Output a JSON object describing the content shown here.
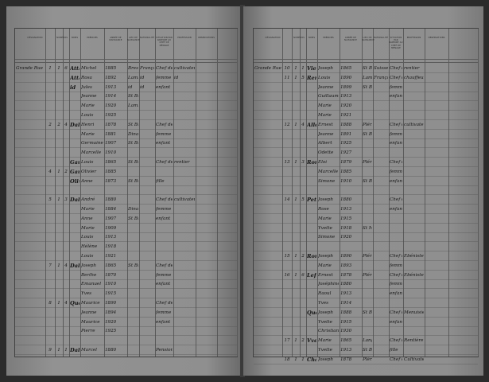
{
  "headers": {
    "designation": "DÉSIGNATION",
    "numeros": "NUMÉROS",
    "noms": "NOMS",
    "prenoms": "PRÉNOMS",
    "annee": "ANNÉE DE NAISSANCE",
    "lieu": "LIEU DE NAISSANCE",
    "nationalite": "NATIONALITÉ",
    "situation": "SITUATION PAR RAPPORT AU CHEF DE MÉNAGE",
    "profession": "PROFESSION",
    "observations": "OBSERVATIONS"
  },
  "left_rows": [
    [
      "Grande Rue",
      "1",
      "1",
      "6",
      "Attaly",
      "Michel",
      "1885",
      "Brest",
      "Française",
      "Chef de ménage",
      "cultivateur"
    ],
    [
      "",
      "",
      "",
      "",
      "Attaly",
      "Rosa",
      "1892",
      "Lamballe",
      "id",
      "femme",
      "id"
    ],
    [
      "",
      "",
      "",
      "",
      "id",
      "Jules",
      "1913",
      "id",
      "id",
      "enfant",
      ""
    ],
    [
      "",
      "",
      "",
      "",
      "",
      "Jeanne",
      "1914",
      "St Brieuc",
      "",
      "",
      ""
    ],
    [
      "",
      "",
      "",
      "",
      "",
      "Marie",
      "1920",
      "Lamballe",
      "",
      "",
      ""
    ],
    [
      "",
      "",
      "",
      "",
      "",
      "Louis",
      "1925",
      "",
      "",
      "",
      ""
    ],
    [
      "",
      "2",
      "2",
      "4",
      "Dalby",
      "Henri",
      "1878",
      "St Brieuc",
      "",
      "Chef de ménage",
      ""
    ],
    [
      "",
      "",
      "",
      "",
      "",
      "Marie",
      "1881",
      "Dinan",
      "",
      "femme",
      ""
    ],
    [
      "",
      "",
      "",
      "",
      "",
      "Germaine",
      "1907",
      "St Brieuc",
      "",
      "enfant",
      ""
    ],
    [
      "",
      "",
      "",
      "",
      "",
      "Marcelle",
      "1910",
      "",
      "",
      "",
      ""
    ],
    [
      "",
      "",
      "",
      "",
      "Gautier",
      "Louis",
      "1865",
      "St Brieuc",
      "",
      "Chef de ménage",
      "rentier"
    ],
    [
      "",
      "4",
      "1",
      "2",
      "Gautier",
      "Olivier",
      "1885",
      "",
      "",
      "",
      ""
    ],
    [
      "",
      "",
      "",
      "",
      "Olivier",
      "Anne",
      "1873",
      "St Brieuc",
      "",
      "fille",
      ""
    ],
    [
      "",
      "",
      "",
      "",
      "",
      "",
      "",
      "",
      "",
      "",
      ""
    ],
    [
      "",
      "5",
      "1",
      "3",
      "Dalby",
      "André",
      "1880",
      "",
      "",
      "Chef de ménage",
      "cultivateur"
    ],
    [
      "",
      "",
      "",
      "",
      "",
      "Marie",
      "1884",
      "Dinan",
      "",
      "femme",
      ""
    ],
    [
      "",
      "",
      "",
      "",
      "",
      "Anne",
      "1907",
      "St Brieuc",
      "",
      "enfant",
      ""
    ],
    [
      "",
      "",
      "",
      "",
      "",
      "Marie",
      "1909",
      "",
      "",
      "",
      ""
    ],
    [
      "",
      "",
      "",
      "",
      "",
      "Louis",
      "1913",
      "",
      "",
      "",
      ""
    ],
    [
      "",
      "",
      "",
      "",
      "",
      "Hélène",
      "1918",
      "",
      "",
      "",
      ""
    ],
    [
      "",
      "",
      "",
      "",
      "",
      "Louis",
      "1921",
      "",
      "",
      "",
      ""
    ],
    [
      "",
      "7",
      "1",
      "4",
      "Dalby",
      "Joseph",
      "1865",
      "St Brieuc",
      "",
      "Chef de ménage",
      ""
    ],
    [
      "",
      "",
      "",
      "",
      "",
      "Berthe",
      "1870",
      "",
      "",
      "femme",
      ""
    ],
    [
      "",
      "",
      "",
      "",
      "",
      "Emanuel",
      "1910",
      "",
      "",
      "enfant",
      ""
    ],
    [
      "",
      "",
      "",
      "",
      "",
      "Yves",
      "1915",
      "",
      "",
      "",
      ""
    ],
    [
      "",
      "8",
      "1",
      "4",
      "Quéau",
      "Maurice",
      "1890",
      "",
      "",
      "Chef de ménage",
      ""
    ],
    [
      "",
      "",
      "",
      "",
      "",
      "Jeanne",
      "1894",
      "",
      "",
      "femme",
      ""
    ],
    [
      "",
      "",
      "",
      "",
      "",
      "Maurice",
      "1920",
      "",
      "",
      "enfant",
      ""
    ],
    [
      "",
      "",
      "",
      "",
      "",
      "Pierre",
      "1925",
      "",
      "",
      "",
      ""
    ],
    [
      "",
      "",
      "",
      "",
      "",
      "",
      "",
      "",
      "",
      "",
      ""
    ],
    [
      "",
      "9",
      "1",
      "1",
      "Dallet",
      "Marcel",
      "1880",
      "",
      "",
      "Pension chez Vve Louis",
      ""
    ]
  ],
  "right_rows": [
    [
      "Grande Rue",
      "10",
      "1",
      "1",
      "Viel",
      "Joseph",
      "1865",
      "St Brieuc",
      "Suisse",
      "Chef de ménage",
      "rentier"
    ],
    [
      "",
      "11",
      "1",
      "5",
      "Renard",
      "Louis",
      "1890",
      "Lamballe",
      "Française",
      "Chef de ménage",
      "chauffeur"
    ],
    [
      "",
      "",
      "",
      "",
      "",
      "Jeanne",
      "1899",
      "St Brieuc",
      "",
      "femme",
      ""
    ],
    [
      "",
      "",
      "",
      "",
      "",
      "Guillaume",
      "1913",
      "",
      "",
      "enfant",
      ""
    ],
    [
      "",
      "",
      "",
      "",
      "",
      "Marie",
      "1920",
      "",
      "",
      "",
      ""
    ],
    [
      "",
      "",
      "",
      "",
      "",
      "Marie",
      "1921",
      "",
      "",
      "",
      ""
    ],
    [
      "",
      "12",
      "1",
      "4",
      "Allemand",
      "Ernest",
      "1888",
      "Plérin",
      "",
      "Chef de ménage",
      "cultivateur"
    ],
    [
      "",
      "",
      "",
      "",
      "",
      "Jeanne",
      "1891",
      "St Brieuc",
      "",
      "femme",
      ""
    ],
    [
      "",
      "",
      "",
      "",
      "",
      "Albert",
      "1925",
      "",
      "",
      "enfant",
      ""
    ],
    [
      "",
      "",
      "",
      "",
      "",
      "Odette",
      "1927",
      "",
      "",
      "",
      ""
    ],
    [
      "",
      "13",
      "1",
      "3",
      "Rondel",
      "Eloi",
      "1879",
      "Plérin",
      "",
      "Chef de ménage",
      ""
    ],
    [
      "",
      "",
      "",
      "",
      "",
      "Marcelle",
      "1885",
      "",
      "",
      "femme",
      ""
    ],
    [
      "",
      "",
      "",
      "",
      "",
      "Simone",
      "1910",
      "St Brieuc",
      "",
      "enfant",
      ""
    ],
    [
      "",
      "",
      "",
      "",
      "",
      "",
      "",
      "",
      "",
      "",
      ""
    ],
    [
      "",
      "14",
      "1",
      "5",
      "Petit",
      "Joseph",
      "1880",
      "",
      "",
      "Chef de ménage",
      ""
    ],
    [
      "",
      "",
      "",
      "",
      "",
      "Rose",
      "1913",
      "",
      "",
      "enfant",
      ""
    ],
    [
      "",
      "",
      "",
      "",
      "",
      "Marie",
      "1915",
      "",
      "",
      "",
      ""
    ],
    [
      "",
      "",
      "",
      "",
      "",
      "Yvette",
      "1918",
      "St Malo",
      "",
      "",
      ""
    ],
    [
      "",
      "",
      "",
      "",
      "",
      "Simone",
      "1920",
      "",
      "",
      "",
      ""
    ],
    [
      "",
      "",
      "",
      "",
      "",
      "",
      "",
      "",
      "",
      "",
      ""
    ],
    [
      "",
      "15",
      "1",
      "2",
      "Rondel",
      "Joseph",
      "1890",
      "Plérin",
      "",
      "Chef de ménage",
      "Ebéniste"
    ],
    [
      "",
      "",
      "",
      "",
      "",
      "Marie",
      "1893",
      "",
      "",
      "femme",
      ""
    ],
    [
      "",
      "16",
      "1",
      "6",
      "Lefèvre",
      "Ernest",
      "1878",
      "Plérin",
      "",
      "Chef de ménage",
      "Ebéniste"
    ],
    [
      "",
      "",
      "",
      "",
      "",
      "Joséphine",
      "1880",
      "",
      "",
      "femme",
      ""
    ],
    [
      "",
      "",
      "",
      "",
      "",
      "Raoul",
      "1913",
      "",
      "",
      "enfant",
      ""
    ],
    [
      "",
      "",
      "",
      "",
      "",
      "Yves",
      "1914",
      "",
      "",
      "",
      ""
    ],
    [
      "",
      "",
      "",
      "",
      "Quéau",
      "Joseph",
      "1888",
      "St Brieuc",
      "",
      "Chef de ménage",
      "Menuisier"
    ],
    [
      "",
      "",
      "",
      "",
      "",
      "Yvette",
      "1915",
      "",
      "",
      "enfant",
      ""
    ],
    [
      "",
      "",
      "",
      "",
      "",
      "Christiane",
      "1930",
      "",
      "",
      "",
      ""
    ],
    [
      "",
      "17",
      "1",
      "2",
      "Vve Mauclair",
      "Marie",
      "1865",
      "Langueux",
      "",
      "Chef de ménage",
      "Rentière"
    ],
    [
      "",
      "",
      "",
      "",
      "",
      "Yvette",
      "1913",
      "St Brieuc",
      "",
      "fille",
      ""
    ],
    [
      "",
      "18",
      "1",
      "1",
      "Chaffrin",
      "Joseph",
      "1878",
      "Plérin",
      "",
      "Chef de ménage",
      "Cultivateur"
    ]
  ]
}
